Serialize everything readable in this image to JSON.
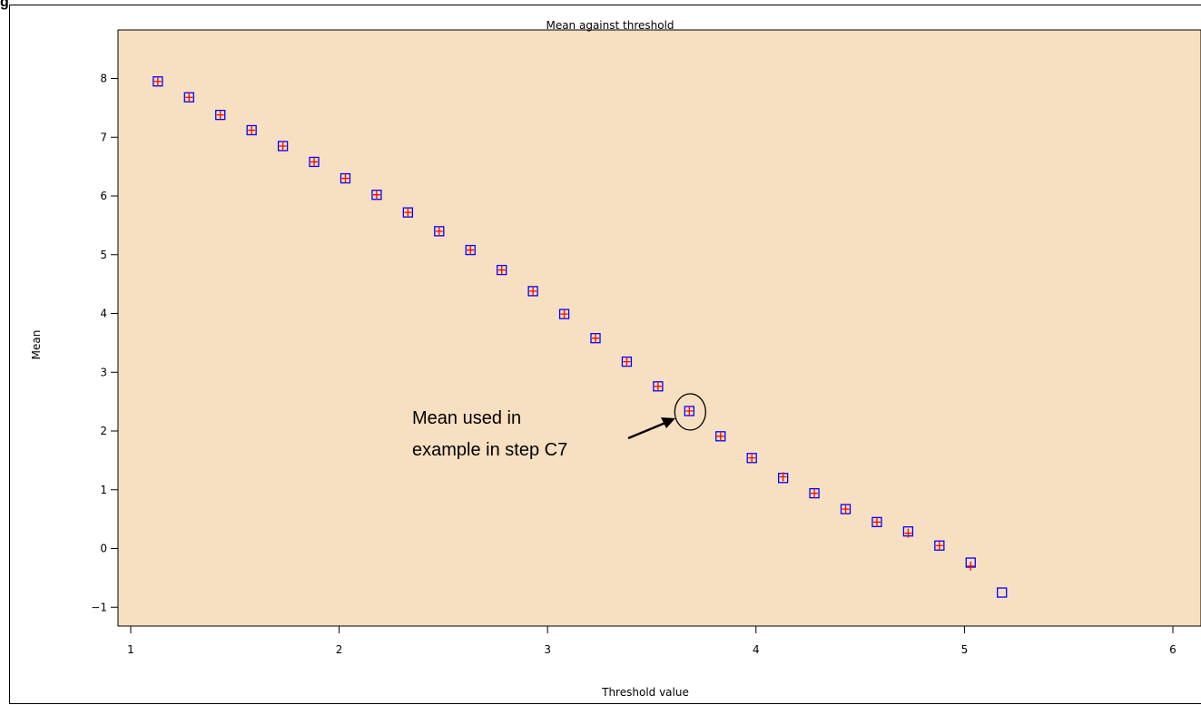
{
  "page": {
    "corner_label": "g"
  },
  "chart_data": {
    "type": "scatter",
    "title": "Mean against threshold",
    "xlabel": "Threshold value",
    "ylabel": "Mean",
    "xlim": [
      0.8,
      6.1
    ],
    "ylim": [
      -1.35,
      8.55
    ],
    "xticks": [
      1,
      2,
      3,
      4,
      5,
      6
    ],
    "yticks": [
      -1,
      0,
      1,
      2,
      3,
      4,
      5,
      6,
      7,
      8
    ],
    "xtick_labels": [
      "1",
      "2",
      "3",
      "4",
      "5",
      "6"
    ],
    "ytick_labels": [
      "−1",
      "0",
      "1",
      "2",
      "3",
      "4",
      "5",
      "6",
      "7",
      "8"
    ],
    "grid": false,
    "plot_background": "#f7e0c1",
    "series": [
      {
        "marker": "square",
        "color": "#0000ff",
        "x": [
          1.13,
          1.28,
          1.43,
          1.58,
          1.73,
          1.88,
          2.03,
          2.18,
          2.33,
          2.48,
          2.63,
          2.78,
          2.93,
          3.08,
          3.23,
          3.38,
          3.53,
          3.68,
          3.83,
          3.98,
          4.13,
          4.28,
          4.43,
          4.58,
          4.73,
          4.88,
          5.03,
          5.18
        ],
        "y": [
          7.95,
          7.68,
          7.38,
          7.12,
          6.85,
          6.58,
          6.3,
          6.02,
          5.72,
          5.4,
          5.08,
          4.74,
          4.38,
          3.99,
          3.58,
          3.18,
          2.76,
          2.34,
          1.91,
          1.54,
          1.2,
          0.94,
          0.67,
          0.45,
          0.29,
          0.05,
          -0.24,
          -0.75
        ]
      },
      {
        "marker": "plus",
        "color": "#ff0000",
        "x": [
          1.13,
          1.28,
          1.43,
          1.58,
          1.73,
          1.88,
          2.03,
          2.18,
          2.33,
          2.48,
          2.63,
          2.78,
          2.93,
          3.08,
          3.23,
          3.38,
          3.53,
          3.68,
          3.83,
          3.98,
          4.13,
          4.28,
          4.43,
          4.58,
          4.73,
          4.88,
          5.03
        ],
        "y": [
          7.95,
          7.68,
          7.38,
          7.12,
          6.85,
          6.58,
          6.3,
          6.02,
          5.72,
          5.4,
          5.08,
          4.74,
          4.38,
          3.99,
          3.58,
          3.18,
          2.76,
          2.34,
          1.91,
          1.54,
          1.22,
          0.94,
          0.67,
          0.45,
          0.26,
          0.05,
          -0.3
        ]
      }
    ],
    "annotation": {
      "lines": [
        "Mean used in",
        "example in step C7"
      ],
      "x": 3.68,
      "y": 2.34
    }
  }
}
